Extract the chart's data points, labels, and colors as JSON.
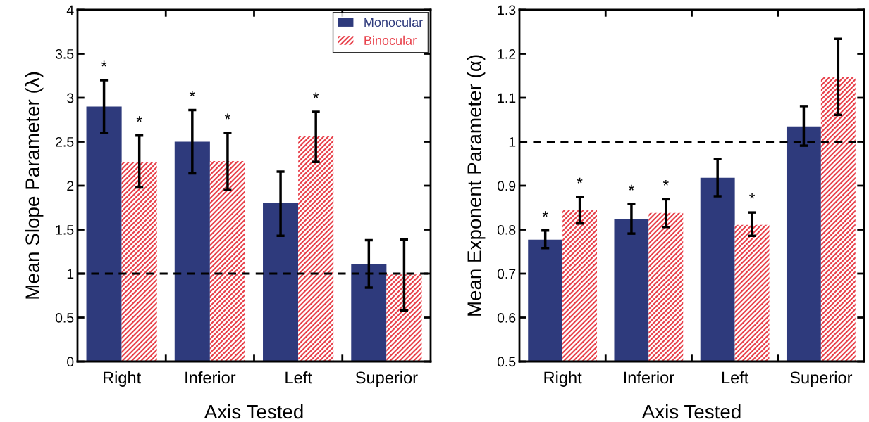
{
  "chart_data": [
    {
      "type": "bar",
      "xlabel": "Axis Tested",
      "ylabel": "Mean Slope Parameter (λ)",
      "categories": [
        "Right",
        "Inferior",
        "Left",
        "Superior"
      ],
      "ylim": [
        0,
        4
      ],
      "yticks": [
        0,
        0.5,
        1,
        1.5,
        2,
        2.5,
        3,
        3.5,
        4
      ],
      "legend": "top right",
      "grid": false,
      "series": [
        {
          "name": "Monocular",
          "color": "#2e3a7c",
          "values": [
            2.9,
            2.5,
            1.8,
            1.11
          ],
          "errors": [
            [
              2.6,
              3.2
            ],
            [
              2.14,
              2.86
            ],
            [
              1.43,
              2.16
            ],
            [
              0.84,
              1.38
            ]
          ],
          "value_labels": [
            "*",
            "*",
            null,
            null
          ]
        },
        {
          "name": "Binocular",
          "color": "#e8414b",
          "values": [
            2.27,
            2.28,
            2.56,
            0.99
          ],
          "errors": [
            [
              1.98,
              2.57
            ],
            [
              1.95,
              2.6
            ],
            [
              2.27,
              2.84
            ],
            [
              0.58,
              1.39
            ]
          ],
          "value_labels": [
            "*",
            "*",
            "*",
            null
          ]
        }
      ],
      "ref_lines": [
        {
          "axis": "y",
          "value": 1,
          "color": "#000000",
          "line_style": "dashed"
        }
      ]
    },
    {
      "type": "bar",
      "xlabel": "Axis Tested",
      "ylabel": "Mean Exponent Parameter (α)",
      "categories": [
        "Right",
        "Inferior",
        "Left",
        "Superior"
      ],
      "ylim": [
        0.5,
        1.3
      ],
      "yticks": [
        0.5,
        0.6,
        0.7,
        0.8,
        0.9,
        1,
        1.1,
        1.2,
        1.3
      ],
      "grid": false,
      "series": [
        {
          "color": "#2e3a7c",
          "values": [
            0.777,
            0.824,
            0.918,
            1.035
          ],
          "errors": [
            [
              0.758,
              0.798
            ],
            [
              0.791,
              0.858
            ],
            [
              0.876,
              0.961
            ],
            [
              0.991,
              1.081
            ]
          ],
          "value_labels": [
            "*",
            "*",
            null,
            null
          ]
        },
        {
          "color": "#e8414b",
          "values": [
            0.844,
            0.838,
            0.811,
            1.147
          ],
          "errors": [
            [
              0.814,
              0.874
            ],
            [
              0.806,
              0.869
            ],
            [
              0.786,
              0.839
            ],
            [
              1.061,
              1.234
            ]
          ],
          "value_labels": [
            "*",
            "*",
            "*",
            null
          ]
        }
      ],
      "ref_lines": [
        {
          "axis": "y",
          "value": 1,
          "color": "#000000",
          "line_style": "dashed"
        }
      ]
    }
  ]
}
